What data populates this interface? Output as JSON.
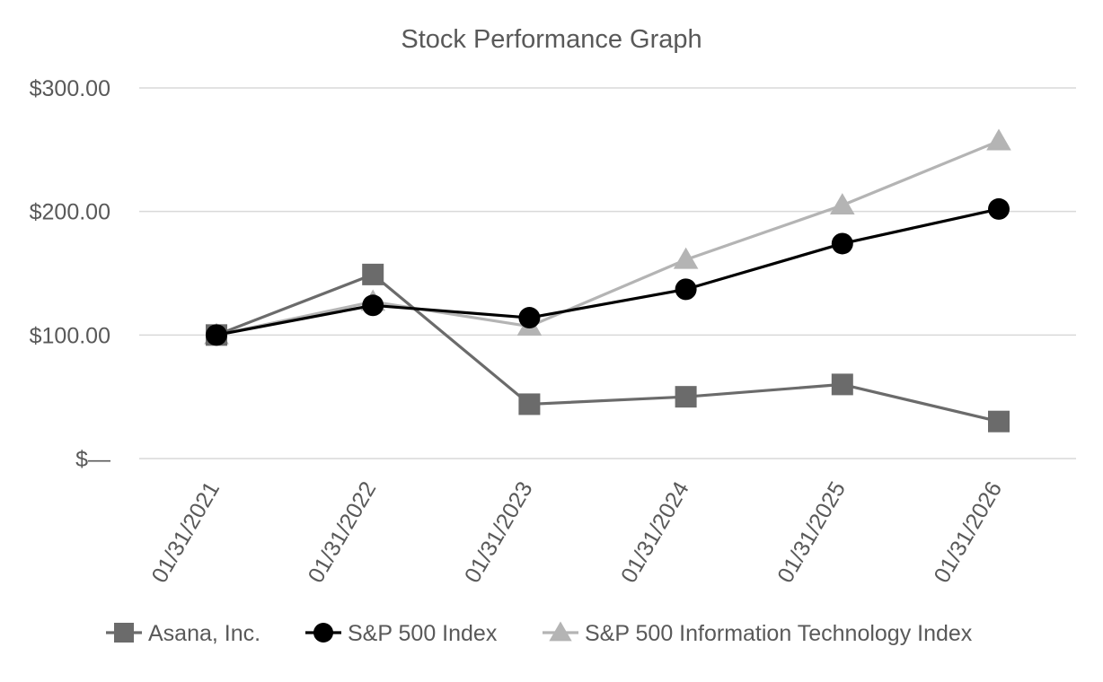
{
  "chart_data": {
    "type": "line",
    "title": "Stock Performance Graph",
    "xlabel": "",
    "ylabel": "",
    "ylim": [
      0,
      300
    ],
    "y_ticks": [
      {
        "value": 0,
        "label": "$—"
      },
      {
        "value": 100,
        "label": "$100.00"
      },
      {
        "value": 200,
        "label": "$200.00"
      },
      {
        "value": 300,
        "label": "$300.00"
      }
    ],
    "grid": true,
    "legend_position": "bottom",
    "categories": [
      "01/31/2021",
      "01/31/2022",
      "01/31/2023",
      "01/31/2024",
      "01/31/2025",
      "01/31/2026"
    ],
    "series": [
      {
        "name": "Asana, Inc.",
        "marker": "square",
        "color": "#6b6b6b",
        "values": [
          100,
          149,
          44,
          50,
          60,
          30
        ]
      },
      {
        "name": "S&P 500 Index",
        "marker": "circle",
        "color": "#000000",
        "values": [
          100,
          124,
          114,
          137,
          174,
          202
        ]
      },
      {
        "name": "S&P 500 Information Technology Index",
        "marker": "triangle",
        "color": "#b4b4b4",
        "values": [
          100,
          127,
          107,
          161,
          205,
          257
        ]
      }
    ]
  }
}
